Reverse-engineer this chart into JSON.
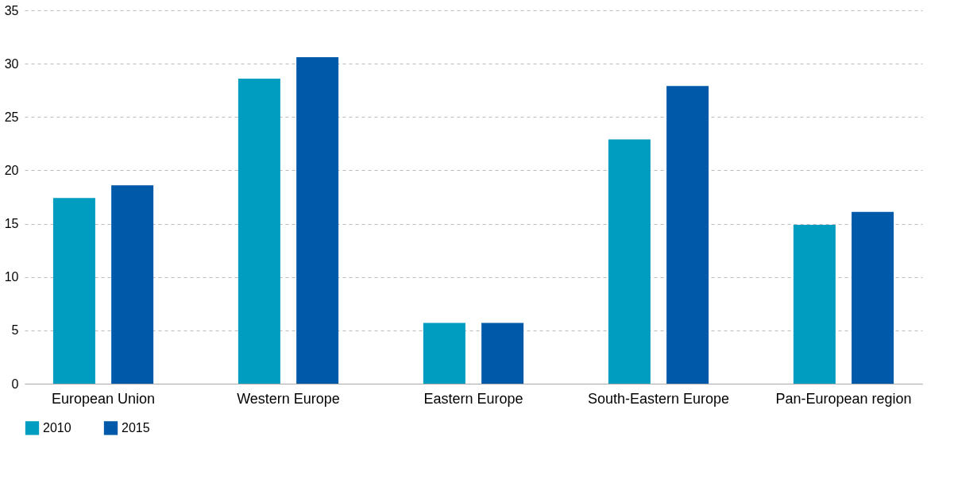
{
  "chart_data": {
    "type": "bar",
    "categories": [
      "European Union",
      "Western Europe",
      "Eastern Europe",
      "South-Eastern Europe",
      "Pan-European region"
    ],
    "series": [
      {
        "name": "2010",
        "color": "#009dc0",
        "values": [
          17.4,
          28.6,
          5.7,
          22.9,
          14.9
        ]
      },
      {
        "name": "2015",
        "color": "#005aa9",
        "values": [
          18.6,
          30.6,
          5.7,
          27.9,
          16.1
        ]
      }
    ],
    "ylim": [
      0,
      35
    ],
    "yticks": [
      0,
      5,
      10,
      15,
      20,
      25,
      30,
      35
    ],
    "grid": "y",
    "legend": "bottom"
  }
}
